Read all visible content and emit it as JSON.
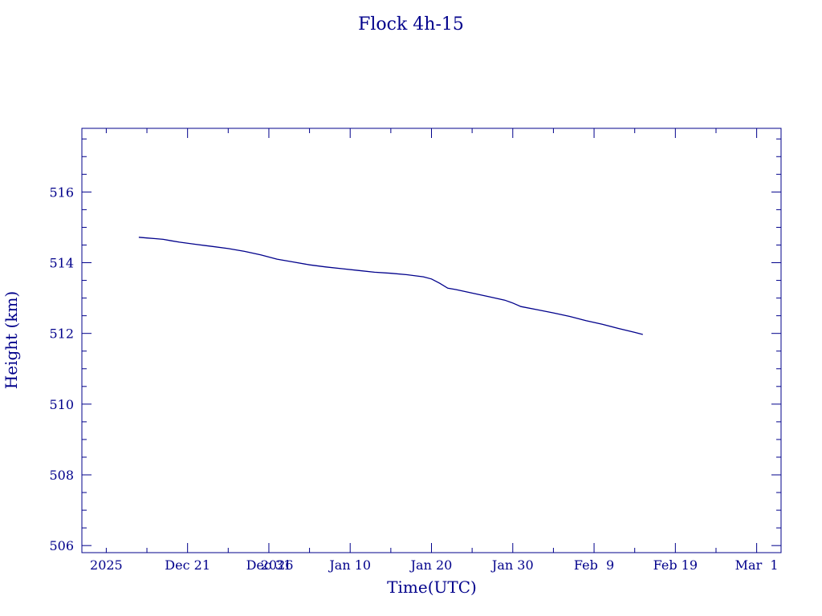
{
  "colors": {
    "axis": "#00008b",
    "line": "#00008b",
    "background": "#ffffff"
  },
  "chart_data": {
    "type": "line",
    "title": "Flock 4h-15",
    "xlabel": "Time(UTC)",
    "ylabel": "Height (km)",
    "xlim": [
      "2025-12-08",
      "2026-03-04"
    ],
    "ylim": [
      505.8,
      517.8
    ],
    "grid": false,
    "x_tick_labels": [
      {
        "date": "2025-12-11",
        "label": "2025"
      },
      {
        "date": "2025-12-21",
        "label": "Dec 21"
      },
      {
        "date": "2025-12-31",
        "label": "Dec 31"
      },
      {
        "date": "2026-01-01",
        "label": "2026"
      },
      {
        "date": "2026-01-10",
        "label": "Jan 10"
      },
      {
        "date": "2026-01-20",
        "label": "Jan 20"
      },
      {
        "date": "2026-01-30",
        "label": "Jan 30"
      },
      {
        "date": "2026-02-09",
        "label": "Feb  9"
      },
      {
        "date": "2026-02-19",
        "label": "Feb 19"
      },
      {
        "date": "2026-03-01",
        "label": "Mar  1"
      }
    ],
    "y_ticks": [
      506,
      508,
      510,
      512,
      514,
      516
    ],
    "series": [
      {
        "x": [
          "2025-12-15",
          "2025-12-16",
          "2025-12-17",
          "2025-12-18",
          "2025-12-19",
          "2025-12-20",
          "2025-12-22",
          "2025-12-24",
          "2025-12-26",
          "2025-12-28",
          "2025-12-30",
          "2026-01-01",
          "2026-01-03",
          "2026-01-05",
          "2026-01-07",
          "2026-01-09",
          "2026-01-11",
          "2026-01-13",
          "2026-01-15",
          "2026-01-17",
          "2026-01-19",
          "2026-01-20",
          "2026-01-21",
          "2026-01-22",
          "2026-01-23",
          "2026-01-25",
          "2026-01-27",
          "2026-01-29",
          "2026-01-30",
          "2026-01-31",
          "2026-02-02",
          "2026-02-04",
          "2026-02-06",
          "2026-02-08",
          "2026-02-10",
          "2026-02-12",
          "2026-02-14",
          "2026-02-15"
        ],
        "y": [
          514.72,
          514.7,
          514.68,
          514.66,
          514.62,
          514.58,
          514.52,
          514.46,
          514.4,
          514.32,
          514.22,
          514.1,
          514.02,
          513.94,
          513.88,
          513.83,
          513.78,
          513.73,
          513.7,
          513.66,
          513.6,
          513.54,
          513.42,
          513.28,
          513.24,
          513.14,
          513.04,
          512.94,
          512.86,
          512.76,
          512.67,
          512.58,
          512.48,
          512.36,
          512.26,
          512.14,
          512.03,
          511.97
        ]
      }
    ]
  }
}
